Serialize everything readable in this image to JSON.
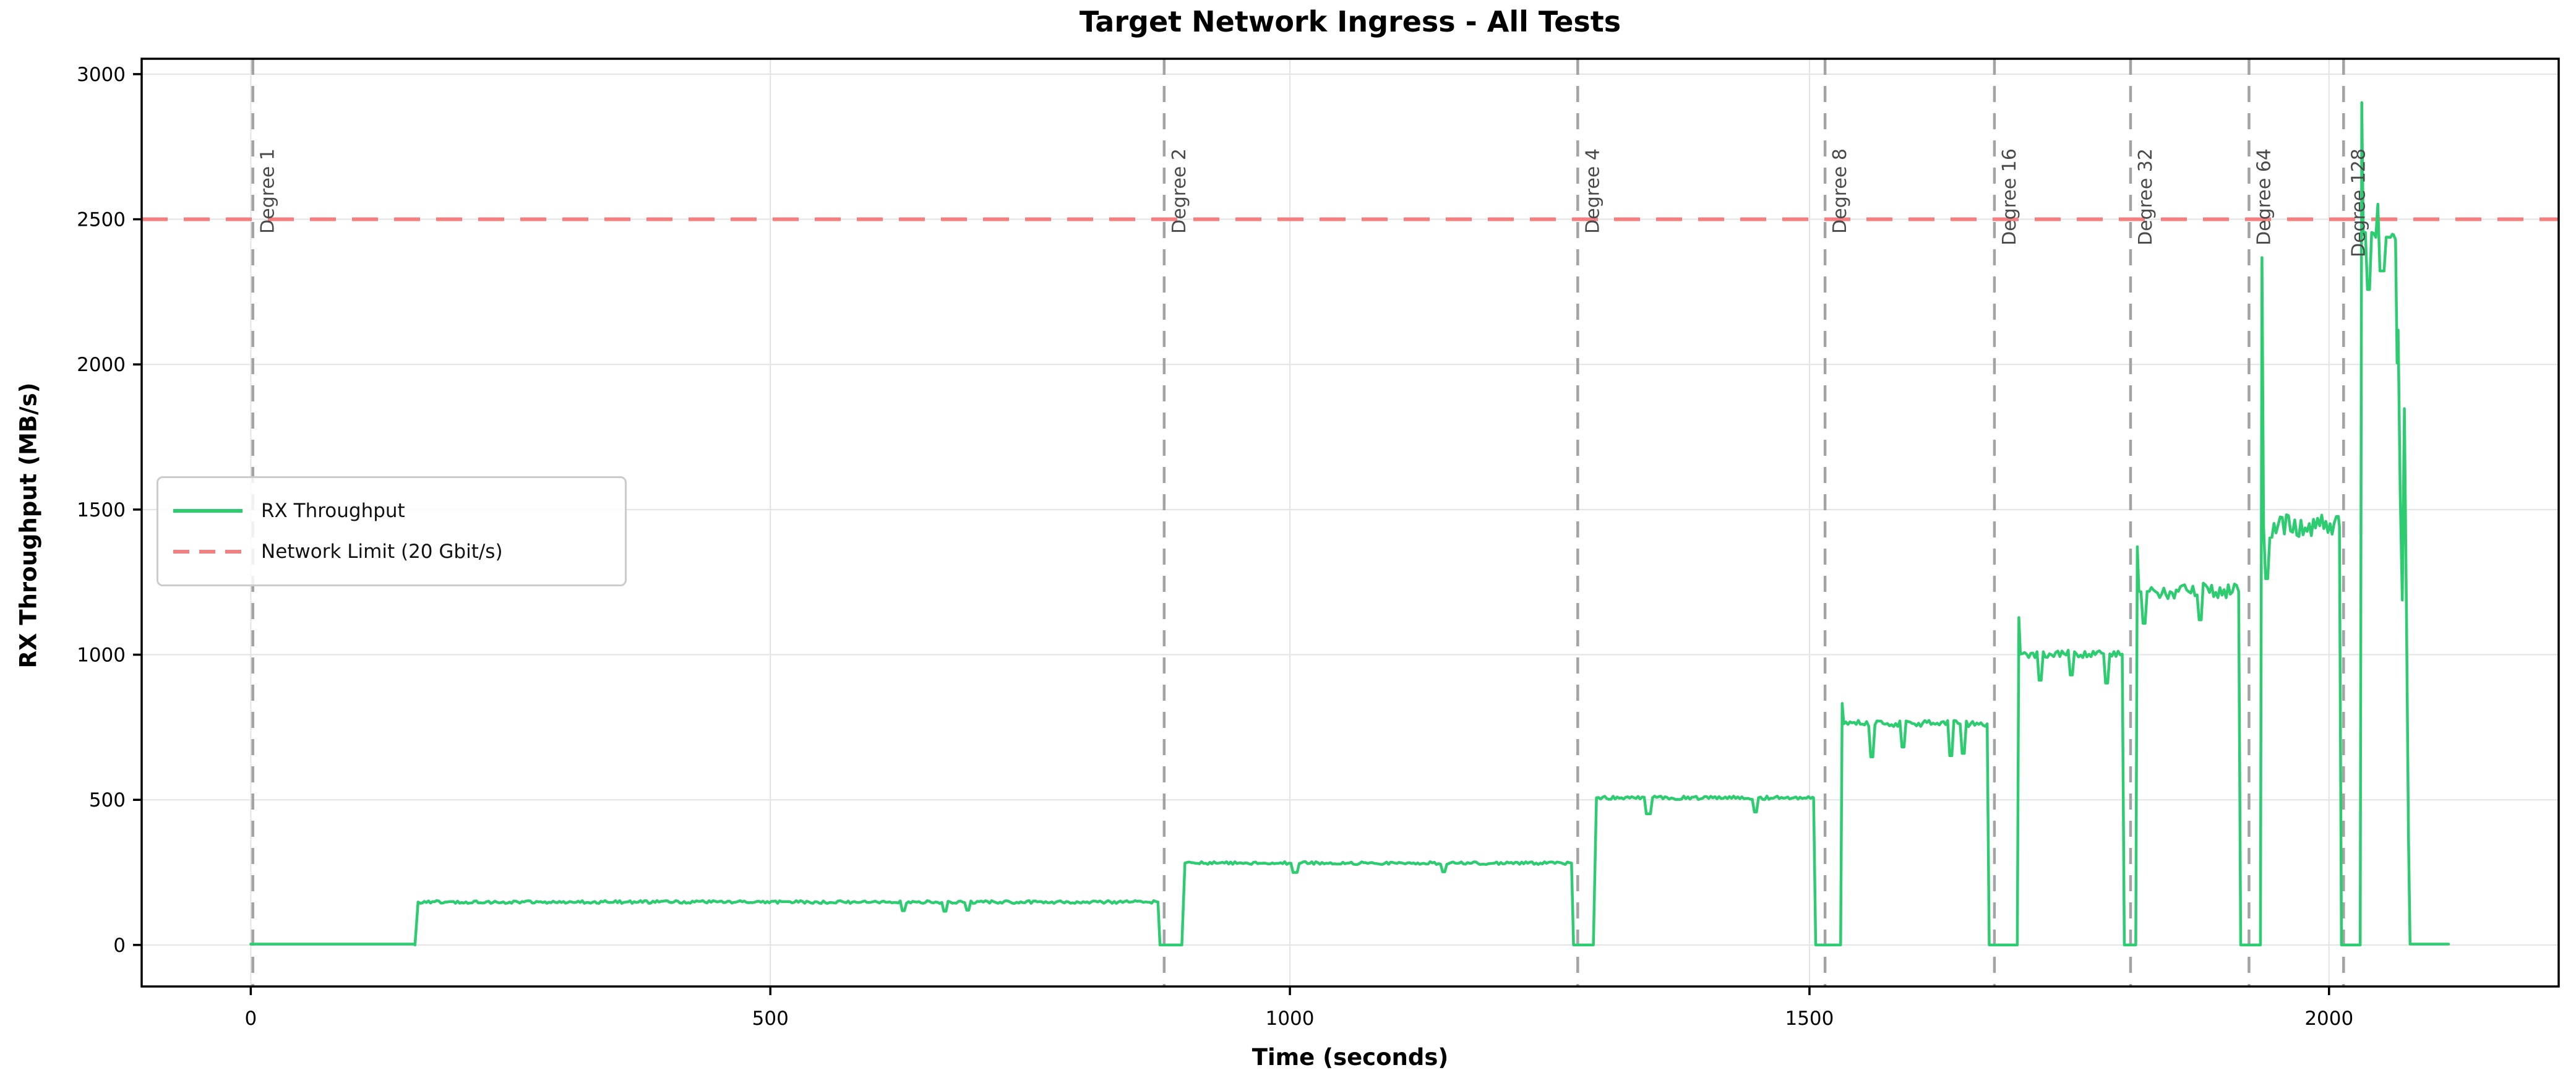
{
  "figure": {
    "title": "Target Network Ingress - All Tests",
    "xlabel": "Time (seconds)",
    "ylabel": "RX Throughput (MB/s)"
  },
  "legend": {
    "entries": [
      {
        "label": "RX Throughput",
        "style": "solid",
        "color": "#2ecc71"
      },
      {
        "label": "Network Limit (20 Gbit/s)",
        "style": "dashed",
        "color": "#f57f7f"
      }
    ]
  },
  "chart_data": {
    "type": "line",
    "title": "Target Network Ingress - All Tests",
    "xlabel": "Time (seconds)",
    "ylabel": "RX Throughput (MB/s)",
    "xlim": [
      -105,
      2221
    ],
    "ylim": [
      -143,
      3053
    ],
    "x_ticks": [
      0,
      500,
      1000,
      1500,
      2000
    ],
    "y_ticks": [
      0,
      500,
      1000,
      1500,
      2000,
      2500,
      3000
    ],
    "grid": true,
    "grid_color": "#e3e3e3",
    "spine_color": "#000000",
    "legend_position": "center-left",
    "network_limit": {
      "label": "Network Limit (20 Gbit/s)",
      "value": 2500,
      "color": "#f57f7f",
      "style": "dashed"
    },
    "degree_markers": {
      "color": "#a3a3a3",
      "label_color": "#4a4a4a",
      "items": [
        {
          "label": "Degree 1",
          "time": 2
        },
        {
          "label": "Degree 2",
          "time": 879
        },
        {
          "label": "Degree 4",
          "time": 1277
        },
        {
          "label": "Degree 8",
          "time": 1515
        },
        {
          "label": "Degree 16",
          "time": 1678
        },
        {
          "label": "Degree 32",
          "time": 1809
        },
        {
          "label": "Degree 64",
          "time": 1923
        },
        {
          "label": "Degree 128",
          "time": 2014
        }
      ]
    },
    "rx_series": {
      "name": "RX Throughput",
      "color": "#2ecc71",
      "linewidth": 4.5,
      "segments": [
        {
          "type": "path",
          "points": [
            [
              0,
              3
            ],
            [
              158,
              3
            ]
          ]
        },
        {
          "type": "step",
          "t0": 158,
          "t1": 873,
          "level": 148,
          "noise": 5,
          "dips": [
            [
              628,
              118
            ],
            [
              668,
              116
            ],
            [
              690,
              120
            ]
          ]
        },
        {
          "type": "step",
          "t0": 896,
          "t1": 1271,
          "level": 282,
          "noise": 5,
          "dips": [
            [
              1005,
              250
            ],
            [
              1148,
              252
            ]
          ]
        },
        {
          "type": "step",
          "t0": 1292,
          "t1": 1504,
          "level": 507,
          "noise": 6,
          "dips": [
            [
              1345,
              452
            ],
            [
              1448,
              458
            ]
          ]
        },
        {
          "type": "step",
          "t0": 1530,
          "t1": 1671,
          "level": 762,
          "noise": 12,
          "spike": 832,
          "dips": [
            [
              1560,
              648
            ],
            [
              1590,
              682
            ],
            [
              1636,
              652
            ],
            [
              1648,
              660
            ]
          ]
        },
        {
          "type": "step",
          "t0": 1700,
          "t1": 1801,
          "level": 1002,
          "noise": 14,
          "spike": 1128,
          "dips": [
            [
              1722,
              912
            ],
            [
              1752,
              930
            ],
            [
              1786,
              902
            ]
          ]
        },
        {
          "type": "step",
          "t0": 1814,
          "t1": 1913,
          "level": 1218,
          "noise": 30,
          "spike": 1372,
          "dips": [
            [
              1822,
              1108
            ],
            [
              1876,
              1120
            ]
          ]
        },
        {
          "type": "step",
          "t0": 1934,
          "t1": 2010,
          "level": 1442,
          "noise": 42,
          "spike": 2368,
          "dips": [
            [
              1940,
              1262
            ]
          ]
        },
        {
          "type": "step",
          "t0": 2030,
          "t1": 2062,
          "level": 2447,
          "noise": 10,
          "spike": 2902,
          "dips": [
            [
              2038,
              2258
            ],
            [
              2048,
              2552
            ],
            [
              2051,
              2322
            ]
          ],
          "end": "open"
        },
        {
          "type": "path",
          "points": [
            [
              2064,
              2430
            ],
            [
              2065.5,
              2005
            ],
            [
              2066.5,
              2118
            ],
            [
              2068.5,
              1562
            ],
            [
              2070.5,
              1188
            ],
            [
              2072.5,
              1848
            ],
            [
              2074.5,
              1152
            ],
            [
              2076.5,
              360
            ],
            [
              2078,
              3
            ],
            [
              2115,
              3
            ]
          ]
        }
      ]
    }
  }
}
